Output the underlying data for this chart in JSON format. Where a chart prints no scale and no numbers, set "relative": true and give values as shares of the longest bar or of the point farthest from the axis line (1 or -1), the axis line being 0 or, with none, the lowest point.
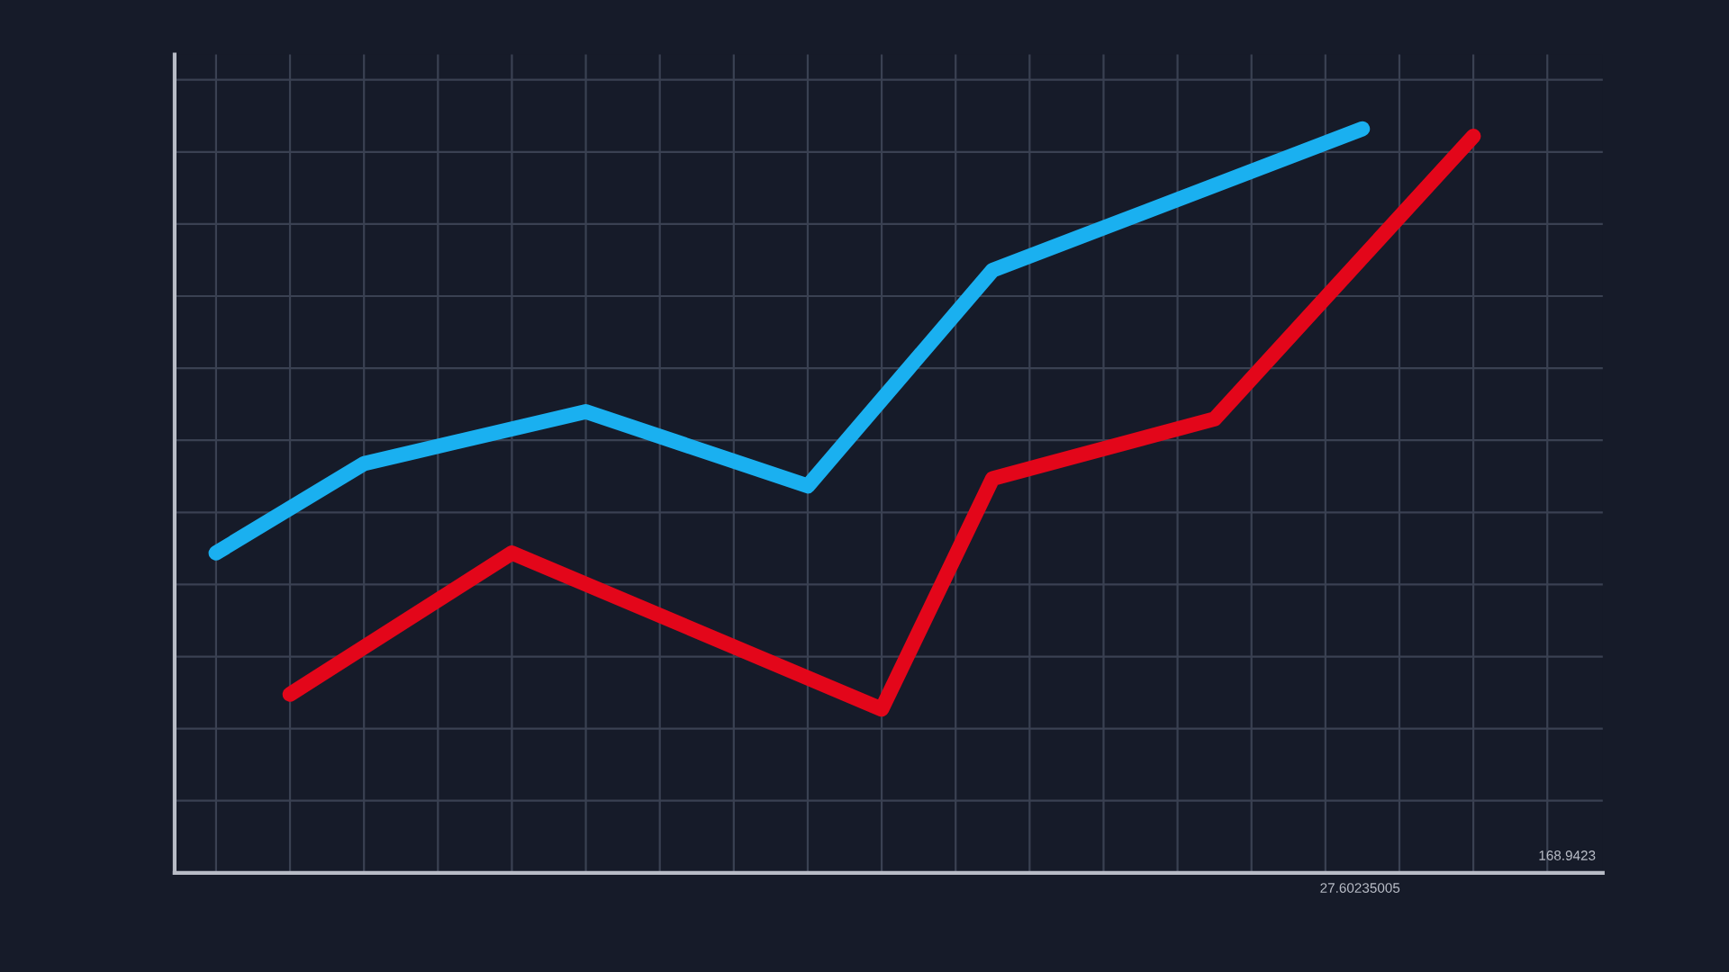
{
  "chart_data": {
    "type": "line",
    "relative": true,
    "grid": true,
    "marker": "none",
    "line_style": "solid",
    "categories": [
      null,
      null,
      null,
      null,
      null,
      null,
      null,
      null,
      null,
      null,
      null,
      null,
      null,
      null,
      null,
      null,
      null,
      null,
      null,
      null,
      null,
      null,
      null,
      null,
      null,
      null,
      null,
      null,
      null,
      null,
      null,
      null,
      null,
      null,
      null,
      null,
      null,
      null,
      null
    ],
    "series": [
      {
        "color": "#1ab0f0",
        "values": [
          null,
          0.43,
          null,
          null,
          null,
          0.55,
          null,
          null,
          null,
          null,
          null,
          0.62,
          null,
          null,
          null,
          null,
          null,
          0.52,
          null,
          null,
          null,
          null,
          0.81,
          null,
          null,
          null,
          null,
          null,
          null,
          null,
          null,
          null,
          1.0,
          null,
          null,
          null,
          null,
          null,
          null
        ]
      },
      {
        "color": "#e3061a",
        "values": [
          null,
          null,
          null,
          0.24,
          null,
          null,
          null,
          null,
          null,
          0.43,
          null,
          null,
          null,
          null,
          null,
          null,
          null,
          null,
          null,
          0.22,
          null,
          null,
          0.53,
          null,
          null,
          null,
          null,
          null,
          0.61,
          null,
          null,
          null,
          null,
          null,
          null,
          0.99,
          null,
          null,
          null
        ]
      }
    ],
    "annotations": [
      "27.60235005",
      "168.9423"
    ]
  }
}
